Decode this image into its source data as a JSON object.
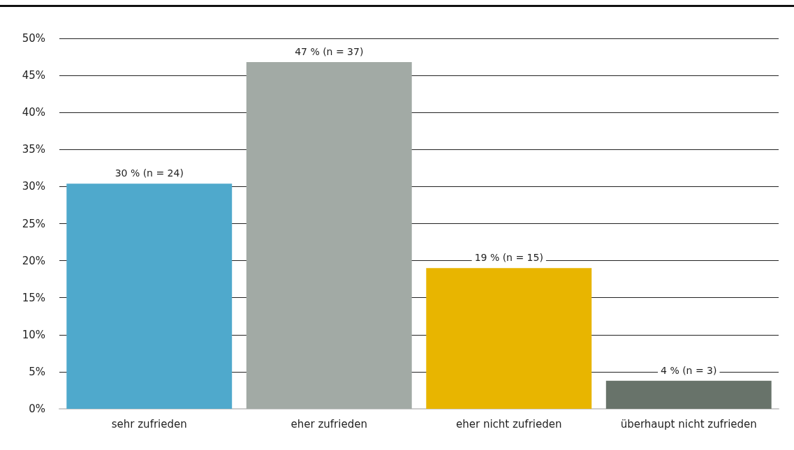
{
  "chart_data": {
    "type": "bar",
    "categories": [
      "sehr zufrieden",
      "eher zufrieden",
      "eher nicht zufrieden",
      "überhaupt nicht zufrieden"
    ],
    "values": [
      30.4,
      46.8,
      19.0,
      3.8
    ],
    "colors": [
      "#4fa9cc",
      "#a2aaa5",
      "#e8b500",
      "#68736a"
    ],
    "value_labels": [
      "30 % (n = 24)",
      "47 % (n = 37)",
      "19 % (n = 15)",
      "4 % (n = 3)"
    ],
    "ylim": [
      0,
      50
    ],
    "yticks": [
      {
        "value": 0,
        "label": "0%"
      },
      {
        "value": 5,
        "label": "5%"
      },
      {
        "value": 10,
        "label": "10%"
      },
      {
        "value": 15,
        "label": "15%"
      },
      {
        "value": 20,
        "label": "20%"
      },
      {
        "value": 25,
        "label": "25%"
      },
      {
        "value": 30,
        "label": "30%"
      },
      {
        "value": 35,
        "label": "35%"
      },
      {
        "value": 40,
        "label": "40%"
      },
      {
        "value": 45,
        "label": "45%"
      },
      {
        "value": 50,
        "label": "50%"
      }
    ],
    "grid": "y"
  }
}
